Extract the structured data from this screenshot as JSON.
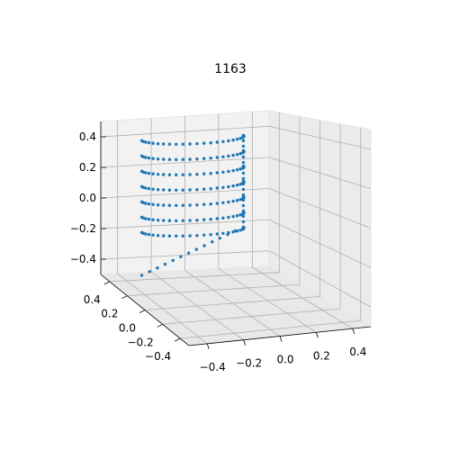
{
  "chart_data": {
    "type": "scatter",
    "projection": "3d",
    "title": "1163",
    "marker_color": "#1f77b4",
    "pane_colors": [
      "#f2f2f2",
      "#ebebeb",
      "#e8e8e8"
    ],
    "grid": true,
    "xlim": [
      -0.5,
      0.5
    ],
    "ylim": [
      -0.5,
      0.5
    ],
    "zlim": [
      -0.5,
      0.5
    ],
    "x_ticks": [
      "−0.4",
      "−0.2",
      "0.0",
      "0.2",
      "0.4"
    ],
    "y_ticks": [
      "0.4",
      "0.2",
      "0.0",
      "−0.2",
      "−0.4"
    ],
    "z_ticks": [
      "0.4",
      "0.2",
      "0.0",
      "−0.2",
      "−0.4"
    ],
    "x_tick_values": [
      -0.4,
      -0.2,
      0.0,
      0.2,
      0.4
    ],
    "y_tick_values": [
      0.4,
      0.2,
      0.0,
      -0.2,
      -0.4
    ],
    "z_tick_values": [
      0.4,
      0.2,
      0.0,
      -0.2,
      -0.4
    ],
    "surface": {
      "description_shape": "half-cylinder shell sampled in rings",
      "x_range": [
        -0.42,
        -0.28
      ],
      "y_range": [
        -0.3,
        0.3
      ],
      "z_range": [
        -0.48,
        0.4
      ],
      "ring_z_values": [
        0.4,
        0.3,
        0.2,
        0.1,
        0.0,
        -0.1,
        -0.2
      ],
      "points_per_ring": 24,
      "bottom_edge_points": 14
    }
  }
}
